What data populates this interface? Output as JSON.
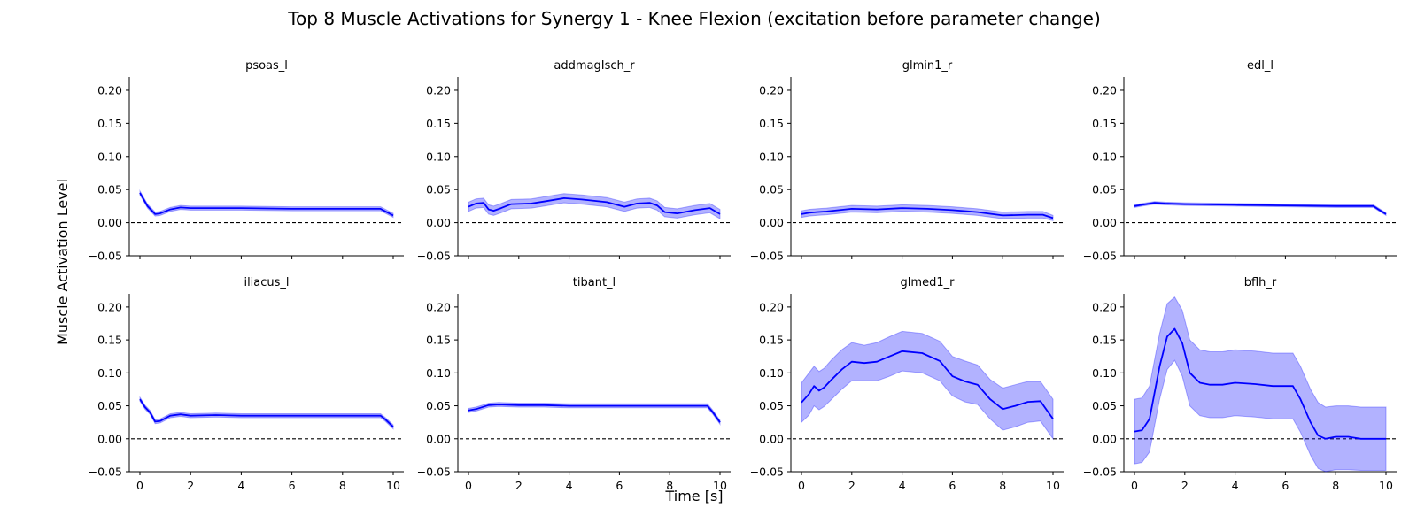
{
  "figure": {
    "title": "Top 8 Muscle Activations for Synergy 1 - Knee Flexion (excitation before parameter change)",
    "xlabel": "Time [s]",
    "ylabel": "Muscle Activation Level"
  },
  "colors": {
    "line": "#0000ff",
    "band": "#0000ff",
    "zero_line": "#000000"
  },
  "chart_data": [
    {
      "type": "line",
      "title": "psoas_l",
      "xlim": [
        0,
        10
      ],
      "ylim": [
        -0.05,
        0.22
      ],
      "x_ticks": [
        "0",
        "2",
        "4",
        "6",
        "8",
        "10"
      ],
      "x_tick_values": [
        0,
        2,
        4,
        6,
        8,
        10
      ],
      "y_ticks": [
        "0.20",
        "0.15",
        "0.10",
        "0.05",
        "0.00",
        "−0.05"
      ],
      "y_tick_values": [
        0.2,
        0.15,
        0.1,
        0.05,
        0,
        -0.05
      ],
      "reference_line": {
        "y": 0,
        "style": "dashed"
      },
      "series": [
        {
          "x": [
            0,
            0.3,
            0.6,
            0.8,
            1.2,
            1.6,
            2.0,
            3.0,
            4.0,
            6.0,
            8.0,
            9.5,
            9.7,
            10.0
          ],
          "mean": [
            0.045,
            0.025,
            0.013,
            0.014,
            0.02,
            0.023,
            0.022,
            0.022,
            0.022,
            0.021,
            0.021,
            0.021,
            0.017,
            0.011
          ],
          "upper": [
            0.048,
            0.028,
            0.016,
            0.017,
            0.023,
            0.026,
            0.025,
            0.025,
            0.025,
            0.024,
            0.024,
            0.024,
            0.02,
            0.014
          ],
          "lower": [
            0.042,
            0.022,
            0.01,
            0.011,
            0.017,
            0.02,
            0.019,
            0.019,
            0.019,
            0.018,
            0.018,
            0.018,
            0.014,
            0.008
          ]
        }
      ]
    },
    {
      "type": "line",
      "title": "addmagIsch_r",
      "xlim": [
        0,
        10
      ],
      "ylim": [
        -0.05,
        0.22
      ],
      "x_ticks": [
        "0",
        "2",
        "4",
        "6",
        "8",
        "10"
      ],
      "x_tick_values": [
        0,
        2,
        4,
        6,
        8,
        10
      ],
      "y_ticks": [
        "0.20",
        "0.15",
        "0.10",
        "0.05",
        "0.00",
        "−0.05"
      ],
      "y_tick_values": [
        0.2,
        0.15,
        0.1,
        0.05,
        0,
        -0.05
      ],
      "reference_line": {
        "y": 0,
        "style": "dashed"
      },
      "series": [
        {
          "x": [
            0,
            0.3,
            0.6,
            0.8,
            1.0,
            1.3,
            1.7,
            2.5,
            3.0,
            3.8,
            4.5,
            5.5,
            6.2,
            6.7,
            7.2,
            7.5,
            7.8,
            8.3,
            9.0,
            9.6,
            10.0
          ],
          "mean": [
            0.024,
            0.029,
            0.03,
            0.02,
            0.018,
            0.022,
            0.028,
            0.029,
            0.032,
            0.037,
            0.035,
            0.031,
            0.024,
            0.029,
            0.03,
            0.026,
            0.016,
            0.014,
            0.019,
            0.022,
            0.013
          ],
          "upper": [
            0.031,
            0.036,
            0.037,
            0.027,
            0.025,
            0.029,
            0.035,
            0.036,
            0.039,
            0.044,
            0.042,
            0.038,
            0.031,
            0.036,
            0.037,
            0.033,
            0.023,
            0.021,
            0.026,
            0.029,
            0.02
          ],
          "lower": [
            0.017,
            0.022,
            0.023,
            0.013,
            0.011,
            0.015,
            0.021,
            0.022,
            0.025,
            0.03,
            0.028,
            0.024,
            0.017,
            0.022,
            0.023,
            0.019,
            0.009,
            0.007,
            0.012,
            0.015,
            0.006
          ]
        }
      ]
    },
    {
      "type": "line",
      "title": "glmin1_r",
      "xlim": [
        0,
        10
      ],
      "ylim": [
        -0.05,
        0.22
      ],
      "x_ticks": [
        "0",
        "2",
        "4",
        "6",
        "8",
        "10"
      ],
      "x_tick_values": [
        0,
        2,
        4,
        6,
        8,
        10
      ],
      "y_ticks": [
        "0.20",
        "0.15",
        "0.10",
        "0.05",
        "0.00",
        "−0.05"
      ],
      "y_tick_values": [
        0.2,
        0.15,
        0.1,
        0.05,
        0,
        -0.05
      ],
      "reference_line": {
        "y": 0,
        "style": "dashed"
      },
      "series": [
        {
          "x": [
            0,
            0.3,
            0.6,
            1.0,
            2.0,
            3.0,
            4.0,
            5.0,
            6.0,
            7.0,
            8.0,
            9.0,
            9.6,
            10.0
          ],
          "mean": [
            0.013,
            0.015,
            0.016,
            0.017,
            0.021,
            0.02,
            0.022,
            0.021,
            0.019,
            0.016,
            0.011,
            0.012,
            0.012,
            0.007
          ],
          "upper": [
            0.018,
            0.02,
            0.021,
            0.022,
            0.026,
            0.025,
            0.027,
            0.026,
            0.024,
            0.021,
            0.016,
            0.017,
            0.017,
            0.011
          ],
          "lower": [
            0.008,
            0.01,
            0.011,
            0.012,
            0.016,
            0.015,
            0.017,
            0.016,
            0.014,
            0.011,
            0.006,
            0.007,
            0.007,
            0.003
          ]
        }
      ]
    },
    {
      "type": "line",
      "title": "edl_l",
      "xlim": [
        0,
        10
      ],
      "ylim": [
        -0.05,
        0.22
      ],
      "x_ticks": [
        "0",
        "2",
        "4",
        "6",
        "8",
        "10"
      ],
      "x_tick_values": [
        0,
        2,
        4,
        6,
        8,
        10
      ],
      "y_ticks": [
        "0.20",
        "0.15",
        "0.10",
        "0.05",
        "0.00",
        "−0.05"
      ],
      "y_tick_values": [
        0.2,
        0.15,
        0.1,
        0.05,
        0,
        -0.05
      ],
      "reference_line": {
        "y": 0,
        "style": "dashed"
      },
      "series": [
        {
          "x": [
            0,
            0.3,
            0.8,
            1.2,
            2.0,
            4.0,
            6.0,
            8.0,
            9.5,
            9.7,
            10.0
          ],
          "mean": [
            0.025,
            0.027,
            0.03,
            0.029,
            0.028,
            0.027,
            0.026,
            0.025,
            0.025,
            0.02,
            0.013
          ],
          "upper": [
            0.027,
            0.029,
            0.032,
            0.031,
            0.03,
            0.029,
            0.028,
            0.027,
            0.027,
            0.022,
            0.015
          ],
          "lower": [
            0.023,
            0.025,
            0.028,
            0.027,
            0.026,
            0.025,
            0.024,
            0.023,
            0.023,
            0.018,
            0.011
          ]
        }
      ]
    },
    {
      "type": "line",
      "title": "iliacus_l",
      "xlim": [
        0,
        10
      ],
      "ylim": [
        -0.05,
        0.22
      ],
      "x_ticks": [
        "0",
        "2",
        "4",
        "6",
        "8",
        "10"
      ],
      "x_tick_values": [
        0,
        2,
        4,
        6,
        8,
        10
      ],
      "y_ticks": [
        "0.20",
        "0.15",
        "0.10",
        "0.05",
        "0.00",
        "−0.05"
      ],
      "y_tick_values": [
        0.2,
        0.15,
        0.1,
        0.05,
        0,
        -0.05
      ],
      "reference_line": {
        "y": 0,
        "style": "dashed"
      },
      "series": [
        {
          "x": [
            0,
            0.2,
            0.4,
            0.6,
            0.8,
            1.2,
            1.6,
            2.0,
            3.0,
            4.0,
            6.0,
            8.0,
            9.5,
            9.7,
            10.0
          ],
          "mean": [
            0.06,
            0.048,
            0.04,
            0.026,
            0.027,
            0.035,
            0.037,
            0.035,
            0.036,
            0.035,
            0.035,
            0.035,
            0.035,
            0.029,
            0.018
          ],
          "upper": [
            0.063,
            0.051,
            0.043,
            0.029,
            0.03,
            0.038,
            0.04,
            0.038,
            0.039,
            0.038,
            0.038,
            0.038,
            0.038,
            0.032,
            0.021
          ],
          "lower": [
            0.057,
            0.045,
            0.037,
            0.023,
            0.024,
            0.032,
            0.034,
            0.032,
            0.033,
            0.032,
            0.032,
            0.032,
            0.032,
            0.026,
            0.015
          ]
        }
      ]
    },
    {
      "type": "line",
      "title": "tibant_l",
      "xlim": [
        0,
        10
      ],
      "ylim": [
        -0.05,
        0.22
      ],
      "x_ticks": [
        "0",
        "2",
        "4",
        "6",
        "8",
        "10"
      ],
      "x_tick_values": [
        0,
        2,
        4,
        6,
        8,
        10
      ],
      "y_ticks": [
        "0.20",
        "0.15",
        "0.10",
        "0.05",
        "0.00",
        "−0.05"
      ],
      "y_tick_values": [
        0.2,
        0.15,
        0.1,
        0.05,
        0,
        -0.05
      ],
      "reference_line": {
        "y": 0,
        "style": "dashed"
      },
      "series": [
        {
          "x": [
            0,
            0.3,
            0.8,
            1.2,
            2.0,
            3.0,
            4.0,
            6.0,
            8.0,
            9.5,
            9.7,
            10.0
          ],
          "mean": [
            0.043,
            0.045,
            0.051,
            0.052,
            0.051,
            0.051,
            0.05,
            0.05,
            0.05,
            0.05,
            0.041,
            0.025
          ],
          "upper": [
            0.046,
            0.048,
            0.054,
            0.055,
            0.054,
            0.054,
            0.053,
            0.053,
            0.053,
            0.053,
            0.044,
            0.028
          ],
          "lower": [
            0.04,
            0.042,
            0.048,
            0.049,
            0.048,
            0.048,
            0.047,
            0.047,
            0.047,
            0.047,
            0.038,
            0.022
          ]
        }
      ]
    },
    {
      "type": "line",
      "title": "glmed1_r",
      "xlim": [
        0,
        10
      ],
      "ylim": [
        -0.05,
        0.22
      ],
      "x_ticks": [
        "0",
        "2",
        "4",
        "6",
        "8",
        "10"
      ],
      "x_tick_values": [
        0,
        2,
        4,
        6,
        8,
        10
      ],
      "y_ticks": [
        "0.20",
        "0.15",
        "0.10",
        "0.05",
        "0.00",
        "−0.05"
      ],
      "y_tick_values": [
        0.2,
        0.15,
        0.1,
        0.05,
        0,
        -0.05
      ],
      "reference_line": {
        "y": 0,
        "style": "dashed"
      },
      "series": [
        {
          "x": [
            0,
            0.3,
            0.5,
            0.7,
            0.9,
            1.2,
            1.6,
            2.0,
            2.5,
            3.0,
            3.5,
            4.0,
            4.8,
            5.5,
            6.0,
            6.5,
            7.0,
            7.5,
            8.0,
            8.5,
            9.0,
            9.5,
            10.0
          ],
          "mean": [
            0.055,
            0.068,
            0.08,
            0.073,
            0.078,
            0.09,
            0.105,
            0.117,
            0.115,
            0.117,
            0.125,
            0.133,
            0.13,
            0.118,
            0.095,
            0.087,
            0.082,
            0.06,
            0.045,
            0.05,
            0.056,
            0.057,
            0.03
          ],
          "upper": [
            0.085,
            0.1,
            0.11,
            0.102,
            0.107,
            0.12,
            0.135,
            0.146,
            0.142,
            0.146,
            0.155,
            0.163,
            0.16,
            0.148,
            0.125,
            0.118,
            0.112,
            0.09,
            0.077,
            0.082,
            0.087,
            0.087,
            0.06
          ],
          "lower": [
            0.025,
            0.036,
            0.05,
            0.044,
            0.049,
            0.06,
            0.075,
            0.088,
            0.088,
            0.088,
            0.095,
            0.103,
            0.1,
            0.088,
            0.065,
            0.056,
            0.052,
            0.03,
            0.013,
            0.018,
            0.025,
            0.027,
            0.0
          ]
        }
      ]
    },
    {
      "type": "line",
      "title": "bflh_r",
      "xlim": [
        0,
        10
      ],
      "ylim": [
        -0.05,
        0.22
      ],
      "x_ticks": [
        "0",
        "2",
        "4",
        "6",
        "8",
        "10"
      ],
      "x_tick_values": [
        0,
        2,
        4,
        6,
        8,
        10
      ],
      "y_ticks": [
        "0.20",
        "0.15",
        "0.10",
        "0.05",
        "0.00",
        "−0.05"
      ],
      "y_tick_values": [
        0.2,
        0.15,
        0.1,
        0.05,
        0,
        -0.05
      ],
      "reference_line": {
        "y": 0,
        "style": "dashed"
      },
      "series": [
        {
          "x": [
            0,
            0.3,
            0.6,
            1.0,
            1.3,
            1.6,
            1.9,
            2.2,
            2.6,
            3.0,
            3.5,
            4.0,
            4.8,
            5.5,
            6.0,
            6.3,
            6.6,
            7.0,
            7.3,
            7.6,
            8.0,
            8.5,
            9.0,
            9.5,
            10.0
          ],
          "mean": [
            0.011,
            0.013,
            0.03,
            0.11,
            0.155,
            0.167,
            0.145,
            0.1,
            0.085,
            0.082,
            0.082,
            0.085,
            0.083,
            0.08,
            0.08,
            0.08,
            0.06,
            0.025,
            0.005,
            0.0,
            0.003,
            0.003,
            0.0,
            0.0,
            0.0
          ],
          "upper": [
            0.06,
            0.062,
            0.08,
            0.16,
            0.205,
            0.215,
            0.195,
            0.15,
            0.135,
            0.132,
            0.132,
            0.135,
            0.133,
            0.13,
            0.13,
            0.13,
            0.11,
            0.075,
            0.055,
            0.048,
            0.05,
            0.05,
            0.048,
            0.048,
            0.048
          ],
          "lower": [
            -0.038,
            -0.036,
            -0.02,
            0.06,
            0.105,
            0.119,
            0.095,
            0.05,
            0.035,
            0.032,
            0.032,
            0.035,
            0.033,
            0.03,
            0.03,
            0.03,
            0.01,
            -0.025,
            -0.045,
            -0.05,
            -0.047,
            -0.047,
            -0.048,
            -0.048,
            -0.048
          ]
        }
      ]
    }
  ]
}
